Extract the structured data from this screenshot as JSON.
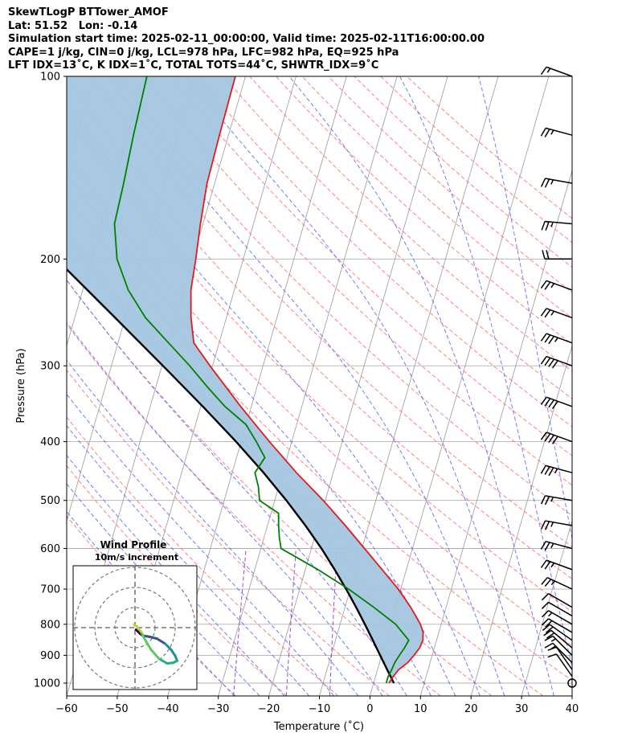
{
  "header": {
    "line1": "SkewTLogP BTTower_AMOF",
    "line2": "Lat: 51.52   Lon: -0.14",
    "line3": "Simulation start time: 2025-02-11_00:00:00, Valid time: 2025-02-11T16:00:00.00",
    "line4": "CAPE=1 j/kg, CIN=0 j/kg, LCL=978 hPa, LFC=982 hPa, EQ=925 hPa",
    "line5": "LFT IDX=13˚C, K IDX=1˚C, TOTAL TOTS=44˚C, SHWTR_IDX=9˚C"
  },
  "chart_data": {
    "type": "line",
    "subtype": "skew-t log-p",
    "xlabel": "Temperature (˚C)",
    "ylabel": "Pressure (hPa)",
    "xlim": [
      -60,
      40
    ],
    "ylim": [
      1050,
      100
    ],
    "y_scale": "log",
    "x_ticks": [
      "−60",
      "−50",
      "−40",
      "−30",
      "−20",
      "−10",
      "0",
      "10",
      "20",
      "30",
      "40"
    ],
    "y_ticks": [
      "100",
      "200",
      "300",
      "400",
      "500",
      "600",
      "700",
      "800",
      "900",
      "1000"
    ],
    "grid": true,
    "colors": {
      "temperature": "#e41a1c",
      "dewpoint": "#008000",
      "parcel": "#000000",
      "cape_fill": "#a3c6df",
      "dry_adiabats": "#ff6b6b",
      "moist_adiabats": "#4a5cff",
      "mixing_ratio": "#9b4fc9",
      "isotherms": "#999999"
    },
    "temperature": {
      "p": [
        1000,
        975,
        950,
        925,
        900,
        875,
        850,
        825,
        800,
        775,
        750,
        725,
        700,
        650,
        600,
        550,
        500,
        450,
        400,
        350,
        300,
        275,
        250,
        225,
        200,
        175,
        150,
        125,
        100
      ],
      "T": [
        3,
        3.5,
        4.2,
        5.6,
        6.4,
        7.1,
        7.3,
        6.9,
        5.9,
        4.5,
        3.0,
        1.3,
        -0.5,
        -4.8,
        -9.5,
        -14.6,
        -20.4,
        -27.3,
        -34.4,
        -42.1,
        -50.5,
        -55.0,
        -57.0,
        -58.6,
        -59.4,
        -60.5,
        -61.5,
        -61.8,
        -62.0
      ]
    },
    "dewpoint": {
      "p": [
        1000,
        975,
        950,
        925,
        900,
        875,
        850,
        800,
        750,
        700,
        650,
        600,
        575,
        550,
        525,
        500,
        475,
        450,
        425,
        400,
        375,
        350,
        325,
        300,
        275,
        250,
        225,
        200,
        175,
        150,
        125,
        100
      ],
      "Td": [
        2.5,
        2.5,
        2.8,
        3.0,
        3.5,
        4.1,
        4.5,
        1.0,
        -4.3,
        -10.3,
        -17.5,
        -26.0,
        -27.0,
        -27.8,
        -28.5,
        -33.0,
        -34.0,
        -35.5,
        -34.4,
        -37.0,
        -40.0,
        -45.2,
        -49.8,
        -54.5,
        -60.0,
        -66.0,
        -71.0,
        -75.0,
        -77.5,
        -78.0,
        -78.8,
        -79.5
      ]
    },
    "parcel": {
      "p": [
        1000,
        950,
        900,
        850,
        800,
        750,
        700,
        650,
        600,
        550,
        500,
        450,
        400,
        350,
        300,
        250,
        200,
        150,
        100
      ],
      "T": [
        4.0,
        1.9,
        -0.3,
        -2.6,
        -5.1,
        -7.8,
        -10.8,
        -14.2,
        -18.0,
        -22.5,
        -27.7,
        -33.8,
        -41.0,
        -49.6,
        -59.8,
        -72.0,
        -87.0,
        -105.0,
        -130.0
      ]
    },
    "wind_barbs": {
      "p": [
        1000,
        975,
        950,
        925,
        900,
        875,
        850,
        825,
        800,
        775,
        750,
        700,
        650,
        600,
        550,
        500,
        450,
        400,
        350,
        300,
        275,
        250,
        225,
        200,
        175,
        150,
        125,
        100
      ],
      "speed_kt": [
        0,
        10,
        10,
        15,
        15,
        20,
        20,
        20,
        15,
        10,
        10,
        25,
        25,
        25,
        25,
        25,
        35,
        40,
        40,
        40,
        35,
        25,
        25,
        20,
        25,
        25,
        25,
        15
      ],
      "direction_deg": [
        0,
        325,
        325,
        315,
        315,
        310,
        305,
        300,
        300,
        300,
        300,
        295,
        290,
        285,
        280,
        280,
        285,
        290,
        290,
        290,
        290,
        290,
        290,
        270,
        275,
        280,
        285,
        290
      ]
    },
    "inset": {
      "title": "Wind Profile",
      "subtitle": "10m/s increment",
      "type": "hodograph",
      "rings": [
        10,
        20,
        30
      ],
      "u": [
        0.5,
        1.5,
        2.5,
        4.0,
        7.0,
        11.0,
        15.0,
        18.0,
        20.0,
        21.0,
        19.0,
        16.0,
        12.0,
        8.0,
        5.0,
        3.0,
        1.0,
        -0.5
      ],
      "v": [
        -1.0,
        -2.0,
        -3.0,
        -4.0,
        -4.5,
        -5.5,
        -8.0,
        -11.0,
        -14.0,
        -16.5,
        -17.5,
        -17.8,
        -15.5,
        -11.0,
        -6.0,
        -2.0,
        0.5,
        1.5
      ]
    }
  }
}
